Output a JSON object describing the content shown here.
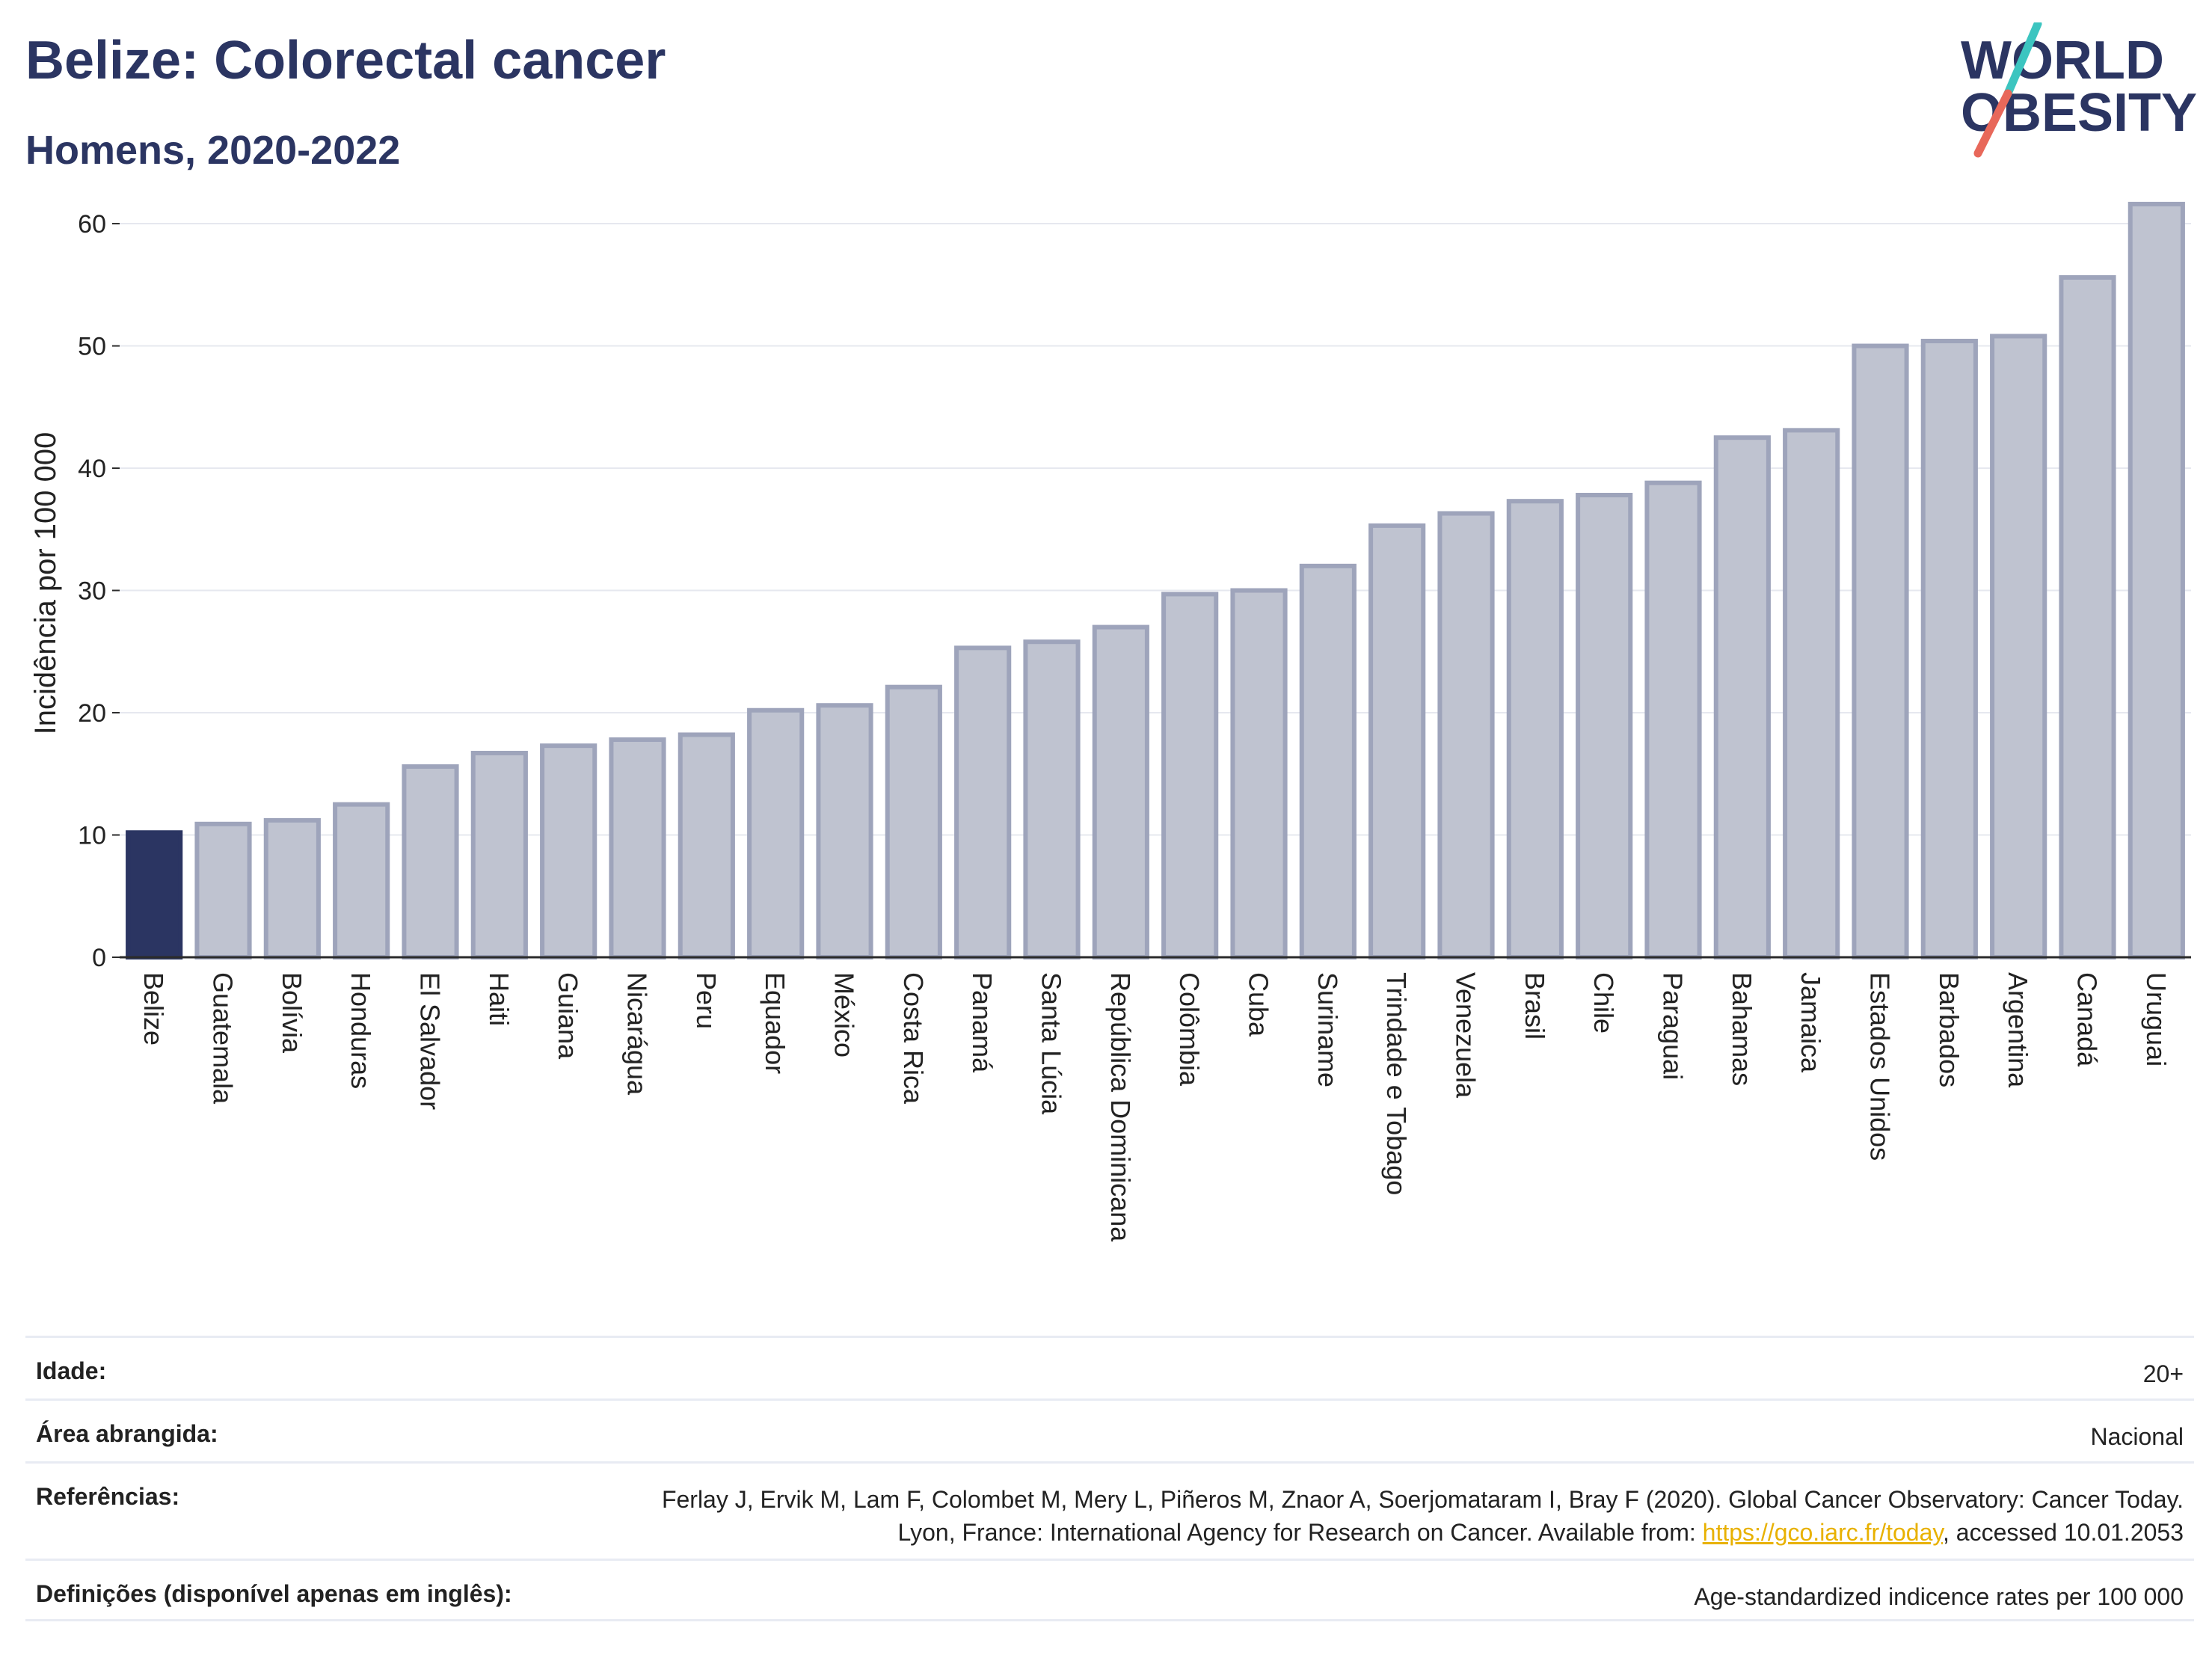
{
  "header": {
    "title": "Belize: Colorectal cancer",
    "subtitle": "Homens, 2020-2022"
  },
  "logo": {
    "line1": "WORLD",
    "line2": "OBESITY",
    "colors": {
      "text": "#2b3562",
      "slash_top": "#3cc5c0",
      "slash_bottom": "#e8685a"
    }
  },
  "chart_data": {
    "type": "bar",
    "ylabel": "Incidência por 100 000",
    "ylim": [
      0,
      63
    ],
    "yticks": [
      0,
      10,
      20,
      30,
      40,
      50,
      60
    ],
    "grid": true,
    "highlight_category": "Belize",
    "colors": {
      "highlight": "#2b3562",
      "bar_fill": "#bfc3d0",
      "bar_stroke": "#9ea4bb",
      "grid": "#e6e8ef"
    },
    "categories": [
      "Belize",
      "Guatemala",
      "Bolívia",
      "Honduras",
      "El Salvador",
      "Haiti",
      "Guiana",
      "Nicarágua",
      "Peru",
      "Equador",
      "México",
      "Costa Rica",
      "Panamá",
      "Santa Lúcia",
      "República Dominicana",
      "Colômbia",
      "Cuba",
      "Suriname",
      "Trindade e Tobago",
      "Venezuela",
      "Brasil",
      "Chile",
      "Paraguai",
      "Bahamas",
      "Jamaica",
      "Estados Unidos",
      "Barbados",
      "Argentina",
      "Canadá",
      "Uruguai"
    ],
    "values": [
      10.2,
      10.9,
      11.2,
      12.5,
      15.6,
      16.7,
      17.3,
      17.8,
      18.2,
      20.2,
      20.6,
      22.1,
      25.3,
      25.8,
      27.0,
      29.7,
      30.0,
      32.0,
      35.3,
      36.3,
      37.3,
      37.8,
      38.8,
      42.5,
      43.1,
      50.0,
      50.4,
      50.8,
      55.6,
      61.6
    ]
  },
  "meta": {
    "age_label": "Idade:",
    "age_value": "20+",
    "area_label": "Área abrangida:",
    "area_value": "Nacional",
    "refs_label": "Referências:",
    "refs_text_1": "Ferlay J, Ervik M, Lam F, Colombet M, Mery L, Piñeros M, Znaor A, Soerjomataram I, Bray F (2020). Global Cancer Observatory: Cancer Today. Lyon, France: International Agency for Research on Cancer. Available from: ",
    "refs_link": "https://gco.iarc.fr/today",
    "refs_text_2": ", accessed 10.01.2053",
    "defs_label": "Definições (disponível apenas em inglês):",
    "defs_value": "Age-standardized indicence rates per 100 000"
  }
}
